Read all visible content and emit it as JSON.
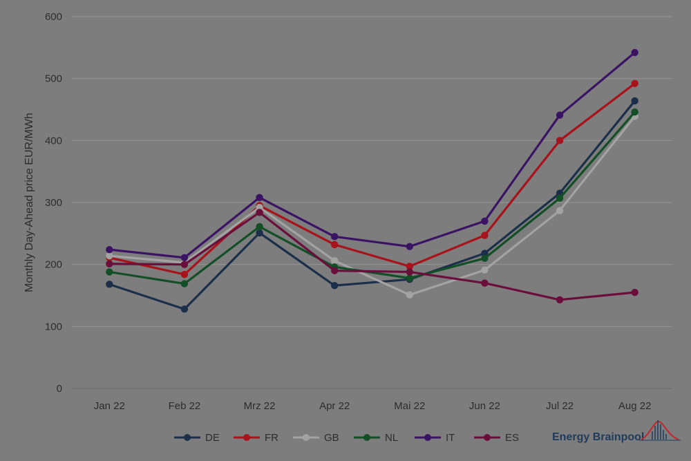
{
  "chart_data": {
    "type": "line",
    "ylabel": "Monthly Day-Ahead price EUR/MWh",
    "xlabel": "",
    "ylim": [
      0,
      600
    ],
    "yticks": [
      0,
      100,
      200,
      300,
      400,
      500,
      600
    ],
    "grid": true,
    "legend": "bottom",
    "categories": [
      "Jan 22",
      "Feb 22",
      "Mrz 22",
      "Apr 22",
      "Mai 22",
      "Jun 22",
      "Jul 22",
      "Aug 22"
    ],
    "series": [
      {
        "name": "DE",
        "color": "#1b2f4a",
        "values": [
          168,
          128,
          251,
          166,
          176,
          218,
          315,
          464
        ]
      },
      {
        "name": "FR",
        "color": "#a8121a",
        "values": [
          211,
          184,
          295,
          232,
          197,
          247,
          400,
          492
        ]
      },
      {
        "name": "GB",
        "color": "#a3a3a3",
        "values": [
          214,
          203,
          292,
          206,
          151,
          191,
          287,
          439
        ]
      },
      {
        "name": "NL",
        "color": "#134f26",
        "values": [
          188,
          169,
          261,
          196,
          178,
          210,
          307,
          446
        ]
      },
      {
        "name": "IT",
        "color": "#3b1364",
        "values": [
          224,
          211,
          308,
          245,
          229,
          270,
          441,
          542
        ]
      },
      {
        "name": "ES",
        "color": "#6a0f3c",
        "values": [
          201,
          200,
          284,
          190,
          188,
          170,
          143,
          155
        ]
      }
    ]
  },
  "brand": {
    "name": "Energy Brainpool",
    "logo_icon": "brainpool-curve-logo"
  }
}
